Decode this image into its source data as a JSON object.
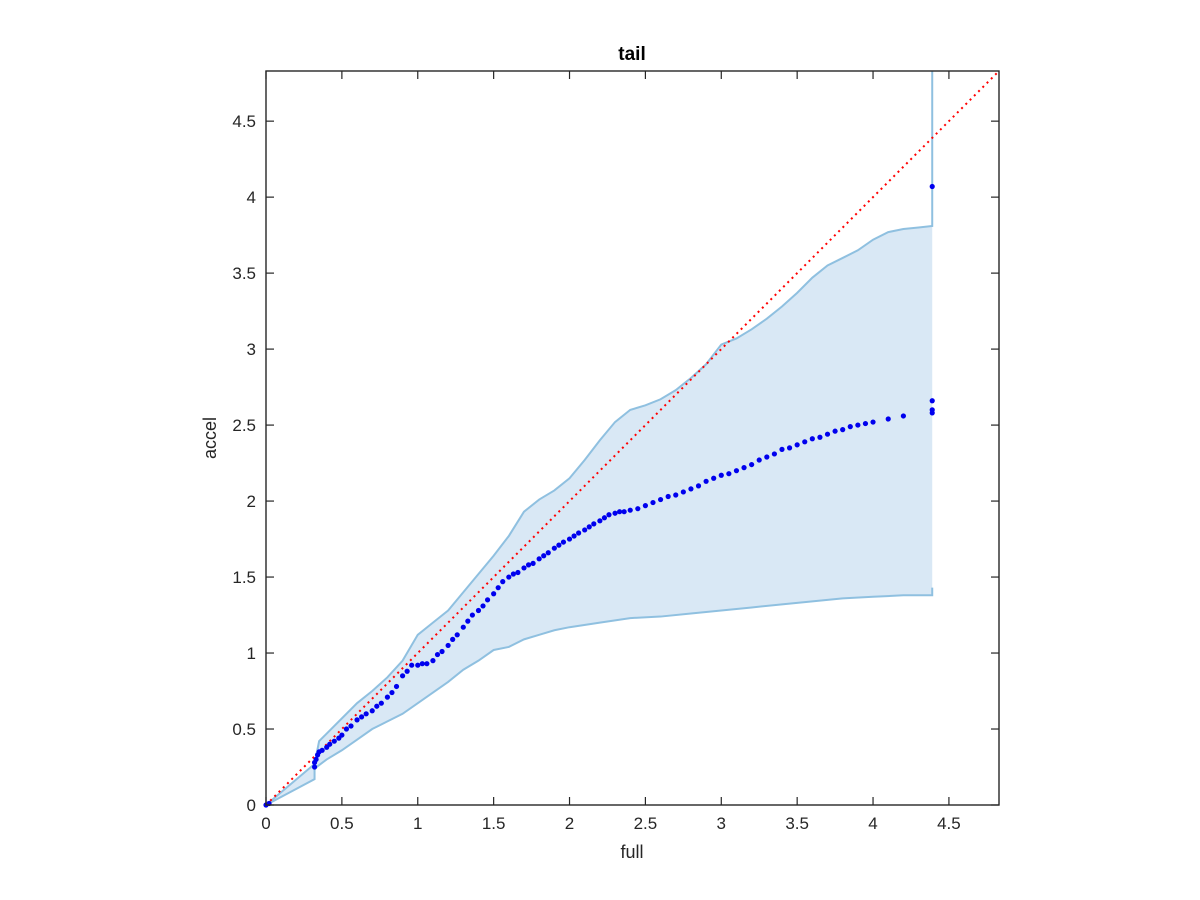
{
  "chart_data": {
    "type": "scatter",
    "title": "tail",
    "xlabel": "full",
    "ylabel": "accel",
    "xlim": [
      0,
      4.83
    ],
    "ylim": [
      0,
      4.83
    ],
    "xticks": [
      "0",
      "0.5",
      "1",
      "1.5",
      "2",
      "2.5",
      "3",
      "3.5",
      "4",
      "4.5"
    ],
    "yticks": [
      "0",
      "0.5",
      "1",
      "1.5",
      "2",
      "2.5",
      "3",
      "3.5",
      "4",
      "4.5"
    ],
    "grid": false,
    "legend": "none",
    "colors": {
      "points": "#0000ee",
      "reference_line": "#ff0000",
      "band_fill": "#d9e8f5",
      "band_edge": "#8fc0e0",
      "axes": "#262626"
    },
    "reference_line": {
      "style": "dotted",
      "x": [
        0,
        4.83
      ],
      "y": [
        0,
        4.83
      ]
    },
    "confidence_band": {
      "upper": {
        "x": [
          0,
          0.32,
          0.35,
          0.4,
          0.5,
          0.6,
          0.7,
          0.8,
          0.9,
          1.0,
          1.1,
          1.2,
          1.3,
          1.4,
          1.5,
          1.6,
          1.7,
          1.8,
          1.9,
          2.0,
          2.1,
          2.2,
          2.3,
          2.4,
          2.5,
          2.6,
          2.7,
          2.8,
          2.9,
          3.0,
          3.1,
          3.2,
          3.3,
          3.4,
          3.5,
          3.6,
          3.7,
          3.8,
          3.9,
          4.0,
          4.1,
          4.2,
          4.3,
          4.39,
          4.39
        ],
        "y": [
          0,
          0.27,
          0.42,
          0.47,
          0.57,
          0.67,
          0.75,
          0.84,
          0.95,
          1.12,
          1.2,
          1.28,
          1.4,
          1.52,
          1.64,
          1.77,
          1.93,
          2.01,
          2.07,
          2.15,
          2.27,
          2.4,
          2.52,
          2.6,
          2.63,
          2.67,
          2.73,
          2.81,
          2.9,
          3.03,
          3.07,
          3.13,
          3.2,
          3.28,
          3.37,
          3.47,
          3.55,
          3.6,
          3.65,
          3.72,
          3.77,
          3.79,
          3.8,
          3.81,
          4.83
        ]
      },
      "lower": {
        "x": [
          0,
          0.32,
          0.32,
          0.4,
          0.5,
          0.6,
          0.7,
          0.8,
          0.9,
          1.0,
          1.1,
          1.2,
          1.3,
          1.4,
          1.5,
          1.6,
          1.7,
          1.8,
          1.9,
          2.0,
          2.2,
          2.4,
          2.6,
          2.8,
          3.0,
          3.2,
          3.4,
          3.6,
          3.8,
          4.0,
          4.2,
          4.39,
          4.39
        ],
        "y": [
          0,
          0.17,
          0.24,
          0.3,
          0.36,
          0.43,
          0.5,
          0.55,
          0.6,
          0.67,
          0.74,
          0.81,
          0.89,
          0.95,
          1.02,
          1.04,
          1.09,
          1.12,
          1.15,
          1.17,
          1.2,
          1.23,
          1.24,
          1.26,
          1.28,
          1.3,
          1.32,
          1.34,
          1.36,
          1.37,
          1.38,
          1.38,
          1.43
        ]
      }
    },
    "series": [
      {
        "x": [
          0,
          0.02,
          0.32,
          0.32,
          0.33,
          0.34,
          0.35,
          0.37,
          0.4,
          0.42,
          0.45,
          0.48,
          0.5,
          0.53,
          0.56,
          0.6,
          0.63,
          0.66,
          0.7,
          0.73,
          0.76,
          0.8,
          0.83,
          0.86,
          0.9,
          0.93,
          0.96,
          1.0,
          1.03,
          1.06,
          1.1,
          1.13,
          1.16,
          1.2,
          1.23,
          1.26,
          1.3,
          1.33,
          1.36,
          1.4,
          1.43,
          1.46,
          1.5,
          1.53,
          1.56,
          1.6,
          1.63,
          1.66,
          1.7,
          1.73,
          1.76,
          1.8,
          1.83,
          1.86,
          1.9,
          1.93,
          1.96,
          2.0,
          2.03,
          2.06,
          2.1,
          2.13,
          2.16,
          2.2,
          2.23,
          2.26,
          2.3,
          2.33,
          2.36,
          2.4,
          2.45,
          2.5,
          2.55,
          2.6,
          2.65,
          2.7,
          2.75,
          2.8,
          2.85,
          2.9,
          2.95,
          3.0,
          3.05,
          3.1,
          3.15,
          3.2,
          3.25,
          3.3,
          3.35,
          3.4,
          3.45,
          3.5,
          3.55,
          3.6,
          3.65,
          3.7,
          3.75,
          3.8,
          3.85,
          3.9,
          3.95,
          4.0,
          4.1,
          4.2,
          4.39,
          4.39,
          4.39,
          4.39
        ],
        "y": [
          0,
          0.01,
          0.25,
          0.28,
          0.3,
          0.33,
          0.35,
          0.36,
          0.38,
          0.4,
          0.42,
          0.44,
          0.46,
          0.5,
          0.52,
          0.56,
          0.58,
          0.6,
          0.62,
          0.65,
          0.67,
          0.71,
          0.74,
          0.78,
          0.85,
          0.88,
          0.92,
          0.92,
          0.93,
          0.93,
          0.95,
          0.99,
          1.01,
          1.05,
          1.09,
          1.12,
          1.17,
          1.21,
          1.25,
          1.28,
          1.31,
          1.35,
          1.39,
          1.43,
          1.47,
          1.5,
          1.52,
          1.53,
          1.56,
          1.58,
          1.59,
          1.62,
          1.64,
          1.66,
          1.69,
          1.71,
          1.73,
          1.75,
          1.77,
          1.79,
          1.81,
          1.83,
          1.85,
          1.87,
          1.89,
          1.91,
          1.92,
          1.93,
          1.93,
          1.94,
          1.95,
          1.97,
          1.99,
          2.01,
          2.03,
          2.04,
          2.06,
          2.08,
          2.1,
          2.13,
          2.15,
          2.17,
          2.18,
          2.2,
          2.22,
          2.24,
          2.27,
          2.29,
          2.31,
          2.34,
          2.35,
          2.37,
          2.39,
          2.41,
          2.42,
          2.44,
          2.46,
          2.47,
          2.49,
          2.5,
          2.51,
          2.52,
          2.54,
          2.56,
          2.58,
          2.6,
          2.66,
          4.07
        ]
      }
    ]
  }
}
